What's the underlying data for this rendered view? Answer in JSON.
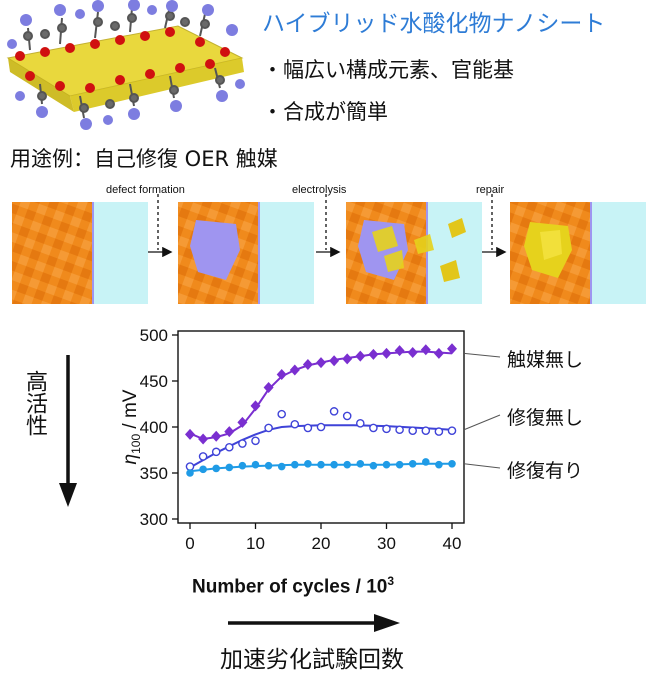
{
  "header": {
    "title": "ハイブリッド水酸化物ナノシート",
    "bullets": [
      "・幅広い構成元素、官能基",
      "・合成が簡単"
    ]
  },
  "usage_label": "用途例：自己修復 OER 触媒",
  "process": {
    "steps": [
      "defect formation",
      "electrolysis",
      "repair"
    ]
  },
  "side_label": "高活性",
  "bottom_label": "加速劣化試験回数",
  "colors": {
    "title": "#2e7cd6",
    "no_catalyst": "#7a2fd0",
    "no_repair": "#3f43d8",
    "with_repair": "#1f9be6",
    "orange": "#f08a1c",
    "water": "#c8f3f6",
    "violet_sheet": "#9f95f0",
    "yellow": "#e6d21c"
  },
  "chart_data": {
    "type": "scatter",
    "title": "",
    "xlabel": "Number of cycles / 10",
    "xlabel_sup": "3",
    "ylabel": "η100 / mV",
    "ylabel_main": "η",
    "ylabel_sub": "100",
    "ylabel_unit": " / mV",
    "xlim": [
      0,
      40
    ],
    "ylim": [
      300,
      500
    ],
    "x_ticks": [
      0,
      10,
      20,
      30,
      40
    ],
    "y_ticks": [
      300,
      350,
      400,
      450,
      500
    ],
    "grid": false,
    "series": [
      {
        "name": "触媒無し",
        "marker": "diamond",
        "x": [
          0,
          2,
          4,
          6,
          8,
          10,
          12,
          14,
          16,
          18,
          20,
          22,
          24,
          26,
          28,
          30,
          32,
          34,
          36,
          38,
          40
        ],
        "y": [
          392,
          387,
          390,
          395,
          405,
          423,
          443,
          457,
          462,
          468,
          470,
          472,
          474,
          477,
          479,
          480,
          483,
          481,
          484,
          480,
          485
        ],
        "fit": [
          [
            0,
            393
          ],
          [
            2,
            387
          ],
          [
            4,
            389
          ],
          [
            6,
            393
          ],
          [
            8,
            402
          ],
          [
            10,
            420
          ],
          [
            12,
            441
          ],
          [
            14,
            455
          ],
          [
            16,
            462
          ],
          [
            18,
            467
          ],
          [
            20,
            470
          ],
          [
            22,
            473
          ],
          [
            24,
            475
          ],
          [
            26,
            477
          ],
          [
            28,
            479
          ],
          [
            30,
            480
          ],
          [
            32,
            481
          ],
          [
            34,
            482
          ],
          [
            36,
            482
          ],
          [
            38,
            481
          ],
          [
            40,
            480
          ]
        ]
      },
      {
        "name": "修復無し",
        "marker": "open-circle",
        "x": [
          0,
          2,
          4,
          6,
          8,
          10,
          12,
          14,
          16,
          18,
          20,
          22,
          24,
          26,
          28,
          30,
          32,
          34,
          36,
          38,
          40
        ],
        "y": [
          357,
          368,
          373,
          378,
          382,
          385,
          399,
          414,
          403,
          399,
          400,
          417,
          412,
          404,
          399,
          398,
          397,
          396,
          396,
          395,
          396
        ],
        "fit": [
          [
            0,
            356
          ],
          [
            2,
            364
          ],
          [
            4,
            372
          ],
          [
            6,
            379
          ],
          [
            8,
            386
          ],
          [
            10,
            392
          ],
          [
            12,
            397
          ],
          [
            14,
            400
          ],
          [
            16,
            401
          ],
          [
            20,
            402
          ],
          [
            25,
            402
          ],
          [
            30,
            401
          ],
          [
            35,
            399
          ],
          [
            40,
            397
          ]
        ]
      },
      {
        "name": "修復有り",
        "marker": "filled-circle",
        "x": [
          0,
          2,
          4,
          6,
          8,
          10,
          12,
          14,
          16,
          18,
          20,
          22,
          24,
          26,
          28,
          30,
          32,
          34,
          36,
          38,
          40
        ],
        "y": [
          350,
          354,
          355,
          356,
          358,
          359,
          358,
          357,
          359,
          360,
          359,
          359,
          359,
          360,
          358,
          359,
          359,
          360,
          362,
          359,
          360
        ],
        "fit": [
          [
            0,
            352
          ],
          [
            4,
            355
          ],
          [
            8,
            357
          ],
          [
            12,
            358
          ],
          [
            16,
            359
          ],
          [
            20,
            359
          ],
          [
            25,
            359
          ],
          [
            30,
            359
          ],
          [
            35,
            360
          ],
          [
            40,
            360
          ]
        ]
      }
    ]
  }
}
